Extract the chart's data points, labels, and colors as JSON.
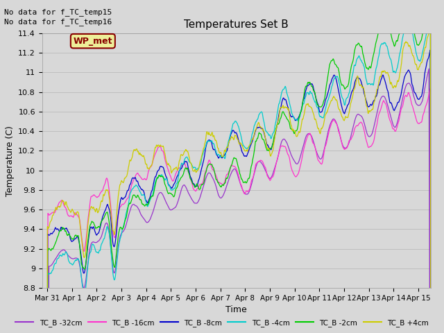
{
  "title": "Temperatures Set B",
  "xlabel": "Time",
  "ylabel": "Temperature (C)",
  "ylim": [
    8.8,
    11.4
  ],
  "background_color": "#d8d8d8",
  "plot_bg_color": "#d8d8d8",
  "no_data_text": [
    "No data for f_TC_temp15",
    "No data for f_TC_temp16"
  ],
  "wp_met_label": "WP_met",
  "wp_met_color": "#880000",
  "wp_met_bg": "#eeee99",
  "series_colors": {
    "TC_B -32cm": "#9933cc",
    "TC_B -16cm": "#ff33cc",
    "TC_B -8cm": "#0000cc",
    "TC_B -4cm": "#00cccc",
    "TC_B -2cm": "#00cc00",
    "TC_B +4cm": "#cccc00"
  },
  "x_tick_labels": [
    "Mar 31",
    "Apr 1",
    "Apr 2",
    "Apr 3",
    "Apr 4",
    "Apr 5",
    "Apr 6",
    "Apr 7",
    "Apr 8",
    "Apr 9",
    "Apr 10",
    "Apr 11",
    "Apr 12",
    "Apr 13",
    "Apr 14",
    "Apr 15"
  ],
  "x_tick_positions": [
    0,
    1,
    2,
    3,
    4,
    5,
    6,
    7,
    8,
    9,
    10,
    11,
    12,
    13,
    14,
    15
  ],
  "yticks": [
    8.8,
    9.0,
    9.2,
    9.4,
    9.6,
    9.8,
    10.0,
    10.2,
    10.4,
    10.6,
    10.8,
    11.0,
    11.2,
    11.4
  ]
}
